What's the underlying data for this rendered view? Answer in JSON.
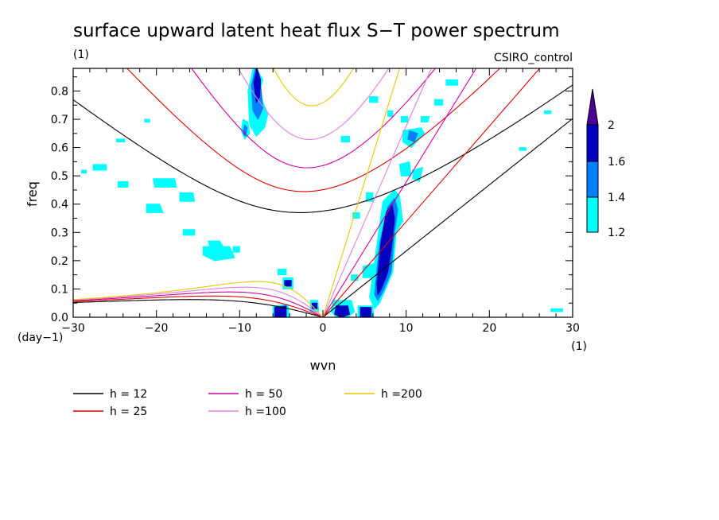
{
  "chart_data": {
    "type": "heatmap",
    "title": "surface upward latent heat flux S−T power spectrum",
    "subtitle": "(1)",
    "model": "CSIRO_control",
    "xlabel": "wvn",
    "ylabel": "freq",
    "x_unit": "(1)",
    "y_unit": "(day−1)",
    "xlim": [
      -30,
      30
    ],
    "ylim": [
      0,
      0.88
    ],
    "x_ticks": [
      -30,
      -20,
      -10,
      0,
      10,
      20,
      30
    ],
    "x_tick_labels": [
      "−30",
      "−20",
      "−10",
      "0",
      "10",
      "20",
      "30"
    ],
    "y_ticks": [
      0,
      0.1,
      0.2,
      0.3,
      0.4,
      0.5,
      0.6,
      0.7,
      0.8
    ],
    "y_tick_labels": [
      "0.0",
      "0.1",
      "0.2",
      "0.3",
      "0.4",
      "0.5",
      "0.6",
      "0.7",
      "0.8"
    ],
    "colorbar": {
      "levels": [
        1.2,
        1.4,
        1.6,
        2
      ],
      "labels": [
        "1.2",
        "1.4",
        "1.6",
        "2"
      ],
      "colors": [
        "#00ffff",
        "#0080ff",
        "#0000c0",
        "#4b0096"
      ]
    },
    "dispersion_curves": [
      {
        "h": 12,
        "label": "h = 12",
        "color": "#000000"
      },
      {
        "h": 25,
        "label": "h = 25",
        "color": "#e00000"
      },
      {
        "h": 50,
        "label": "h = 50",
        "color": "#d000a0"
      },
      {
        "h": 100,
        "label": "h =100",
        "color": "#e080e0"
      },
      {
        "h": 200,
        "label": "h =200",
        "color": "#e8c800"
      }
    ],
    "regions": [
      {
        "level": 1,
        "x": [
          -8.4,
          -7.8,
          -7.2,
          -7.6,
          -7.2,
          -6.6,
          -7.0,
          -8.0,
          -8.8,
          -9.0
        ],
        "y": [
          0.88,
          0.87,
          0.84,
          0.8,
          0.76,
          0.72,
          0.67,
          0.64,
          0.68,
          0.8
        ]
      },
      {
        "level": 2,
        "x": [
          -8.1,
          -7.6,
          -7.4,
          -7.2,
          -7.8,
          -8.4,
          -8.6
        ],
        "y": [
          0.88,
          0.85,
          0.8,
          0.74,
          0.7,
          0.73,
          0.82
        ]
      },
      {
        "level": 3,
        "x": [
          -7.9,
          -7.5,
          -7.6,
          -8.0,
          -8.3
        ],
        "y": [
          0.88,
          0.84,
          0.78,
          0.76,
          0.83
        ]
      },
      {
        "level": 1,
        "x": [
          -9.6,
          -9.0,
          -8.8,
          -9.4,
          -9.8
        ],
        "y": [
          0.7,
          0.69,
          0.65,
          0.63,
          0.66
        ]
      },
      {
        "level": 2,
        "x": [
          -9.4,
          -9.1,
          -9.3,
          -9.6
        ],
        "y": [
          0.68,
          0.67,
          0.64,
          0.65
        ]
      },
      {
        "level": 1,
        "x": [
          7.2,
          8.6,
          9.2,
          9.6,
          8.8,
          8.4,
          7.4,
          6.8,
          6.2,
          5.6,
          6.4
        ],
        "y": [
          0.41,
          0.45,
          0.43,
          0.34,
          0.3,
          0.16,
          0.09,
          0.05,
          0.03,
          0.07,
          0.24
        ]
      },
      {
        "level": 2,
        "x": [
          7.8,
          8.6,
          9.0,
          8.6,
          8.2,
          7.2,
          6.6,
          6.2,
          6.8
        ],
        "y": [
          0.39,
          0.42,
          0.38,
          0.3,
          0.16,
          0.09,
          0.06,
          0.08,
          0.26
        ]
      },
      {
        "level": 3,
        "x": [
          7.6,
          8.3,
          8.6,
          8.3,
          7.8,
          7.0,
          6.6,
          6.5,
          7.0
        ],
        "y": [
          0.37,
          0.4,
          0.35,
          0.26,
          0.16,
          0.1,
          0.08,
          0.12,
          0.27
        ]
      },
      {
        "level": 1,
        "x": [
          1.2,
          3.4,
          3.8,
          3.0,
          1.6,
          1.0
        ],
        "y": [
          0.06,
          0.06,
          0.02,
          0.0,
          0.0,
          0.02
        ]
      },
      {
        "level": 3,
        "x": [
          1.6,
          3.0,
          3.2,
          2.2,
          1.4
        ],
        "y": [
          0.04,
          0.04,
          0.01,
          0.0,
          0.01
        ]
      },
      {
        "level": 1,
        "x": [
          4.2,
          6.0,
          6.1,
          4.2
        ],
        "y": [
          0.04,
          0.04,
          0.0,
          0.0
        ]
      },
      {
        "level": 3,
        "x": [
          4.5,
          5.8,
          5.8,
          4.5
        ],
        "y": [
          0.035,
          0.035,
          0.0,
          0.0
        ]
      },
      {
        "level": 1,
        "x": [
          -6.0,
          -4.2,
          -4.0,
          -6.0
        ],
        "y": [
          0.04,
          0.045,
          0.0,
          0.0
        ]
      },
      {
        "level": 3,
        "x": [
          -5.8,
          -4.4,
          -4.4,
          -5.8
        ],
        "y": [
          0.035,
          0.04,
          0.0,
          0.0
        ]
      },
      {
        "level": 1,
        "x": [
          -4.8,
          -3.6,
          -3.6,
          -4.8
        ],
        "y": [
          0.14,
          0.14,
          0.1,
          0.1
        ]
      },
      {
        "level": 3,
        "x": [
          -4.6,
          -3.8,
          -3.8,
          -4.6
        ],
        "y": [
          0.13,
          0.13,
          0.11,
          0.11
        ]
      },
      {
        "level": 1,
        "x": [
          -1.5,
          -0.6,
          -0.5,
          -1.5
        ],
        "y": [
          0.06,
          0.06,
          0.02,
          0.02
        ]
      },
      {
        "level": 3,
        "x": [
          -1.3,
          -0.7,
          -0.7,
          -1.3
        ],
        "y": [
          0.05,
          0.05,
          0.03,
          0.03
        ]
      },
      {
        "level": 1,
        "x": [
          9.6,
          11.8,
          12.2,
          10.6,
          9.6
        ],
        "y": [
          0.66,
          0.67,
          0.65,
          0.6,
          0.62
        ]
      },
      {
        "level": 2,
        "x": [
          10.4,
          11.4,
          11.0,
          10.2
        ],
        "y": [
          0.66,
          0.65,
          0.62,
          0.63
        ]
      },
      {
        "level": 1,
        "x": [
          9.2,
          10.4,
          10.6,
          9.4
        ],
        "y": [
          0.54,
          0.55,
          0.5,
          0.5
        ]
      },
      {
        "level": 1,
        "x": [
          10.8,
          12.0,
          11.6,
          10.8
        ],
        "y": [
          0.52,
          0.53,
          0.48,
          0.49
        ]
      },
      {
        "level": 1,
        "x": [
          11.8,
          12.8,
          12.6,
          11.8
        ],
        "y": [
          0.71,
          0.71,
          0.69,
          0.69
        ]
      },
      {
        "level": 1,
        "x": [
          4.8,
          6.2,
          6.0,
          4.8
        ],
        "y": [
          0.18,
          0.19,
          0.14,
          0.14
        ]
      },
      {
        "level": 1,
        "x": [
          5.2,
          6.0,
          6.0,
          5.2
        ],
        "y": [
          0.44,
          0.44,
          0.41,
          0.41
        ]
      },
      {
        "level": 1,
        "x": [
          -13.8,
          -12.4,
          -12.0,
          -13.6
        ],
        "y": [
          0.27,
          0.27,
          0.25,
          0.25
        ]
      },
      {
        "level": 1,
        "x": [
          -14.4,
          -11.2,
          -10.6,
          -13.0,
          -14.4
        ],
        "y": [
          0.25,
          0.25,
          0.21,
          0.2,
          0.22
        ]
      },
      {
        "level": 1,
        "x": [
          -10.8,
          -10.0,
          -10.0,
          -10.8
        ],
        "y": [
          0.25,
          0.25,
          0.23,
          0.23
        ]
      },
      {
        "level": 1,
        "x": [
          -20.4,
          -17.8,
          -17.6,
          -20.2
        ],
        "y": [
          0.49,
          0.49,
          0.46,
          0.46
        ]
      },
      {
        "level": 1,
        "x": [
          -17.2,
          -15.6,
          -15.4,
          -17.2
        ],
        "y": [
          0.44,
          0.44,
          0.41,
          0.41
        ]
      },
      {
        "level": 1,
        "x": [
          -21.2,
          -19.6,
          -19.2,
          -21.2
        ],
        "y": [
          0.4,
          0.4,
          0.37,
          0.37
        ]
      },
      {
        "level": 1,
        "x": [
          -27.6,
          -26.0,
          -26.0,
          -27.6
        ],
        "y": [
          0.54,
          0.54,
          0.52,
          0.52
        ]
      },
      {
        "level": 1,
        "x": [
          -24.6,
          -23.4,
          -23.4,
          -24.6
        ],
        "y": [
          0.48,
          0.48,
          0.46,
          0.46
        ]
      },
      {
        "level": 1,
        "x": [
          -16.8,
          -15.4,
          -15.4,
          -16.8
        ],
        "y": [
          0.31,
          0.31,
          0.29,
          0.29
        ]
      },
      {
        "level": 1,
        "x": [
          -24.8,
          -23.8,
          -23.8,
          -24.8
        ],
        "y": [
          0.63,
          0.63,
          0.62,
          0.62
        ]
      },
      {
        "level": 1,
        "x": [
          -29.0,
          -28.4,
          -28.4,
          -29.0
        ],
        "y": [
          0.52,
          0.52,
          0.51,
          0.51
        ]
      },
      {
        "level": 1,
        "x": [
          2.2,
          3.2,
          3.2,
          2.2
        ],
        "y": [
          0.64,
          0.64,
          0.62,
          0.62
        ]
      },
      {
        "level": 1,
        "x": [
          3.6,
          4.4,
          4.4,
          3.6
        ],
        "y": [
          0.37,
          0.37,
          0.35,
          0.35
        ]
      },
      {
        "level": 1,
        "x": [
          3.4,
          4.2,
          4.2,
          3.4
        ],
        "y": [
          0.15,
          0.15,
          0.13,
          0.13
        ]
      },
      {
        "level": 1,
        "x": [
          5.6,
          6.6,
          6.6,
          5.6
        ],
        "y": [
          0.78,
          0.78,
          0.76,
          0.76
        ]
      },
      {
        "level": 1,
        "x": [
          14.8,
          16.2,
          16.2,
          14.8
        ],
        "y": [
          0.84,
          0.84,
          0.82,
          0.82
        ]
      },
      {
        "level": 1,
        "x": [
          13.4,
          14.4,
          14.4,
          13.4
        ],
        "y": [
          0.77,
          0.77,
          0.75,
          0.75
        ]
      },
      {
        "level": 1,
        "x": [
          7.8,
          8.4,
          8.4,
          7.8
        ],
        "y": [
          0.73,
          0.73,
          0.71,
          0.71
        ]
      },
      {
        "level": 1,
        "x": [
          9.4,
          10.2,
          10.2,
          9.4
        ],
        "y": [
          0.71,
          0.71,
          0.69,
          0.69
        ]
      },
      {
        "level": 1,
        "x": [
          -5.4,
          -4.4,
          -4.4,
          -5.4
        ],
        "y": [
          0.17,
          0.17,
          0.15,
          0.15
        ]
      },
      {
        "level": 1,
        "x": [
          27.4,
          28.8,
          28.8,
          27.4
        ],
        "y": [
          0.03,
          0.03,
          0.02,
          0.02
        ]
      },
      {
        "level": 1,
        "x": [
          23.6,
          24.4,
          24.4,
          23.6
        ],
        "y": [
          0.6,
          0.6,
          0.59,
          0.59
        ]
      },
      {
        "level": 1,
        "x": [
          26.6,
          27.4,
          27.4,
          26.6
        ],
        "y": [
          0.73,
          0.73,
          0.72,
          0.72
        ]
      },
      {
        "level": 1,
        "x": [
          -21.4,
          -20.8,
          -20.8,
          -21.4
        ],
        "y": [
          0.7,
          0.7,
          0.69,
          0.69
        ]
      }
    ]
  }
}
